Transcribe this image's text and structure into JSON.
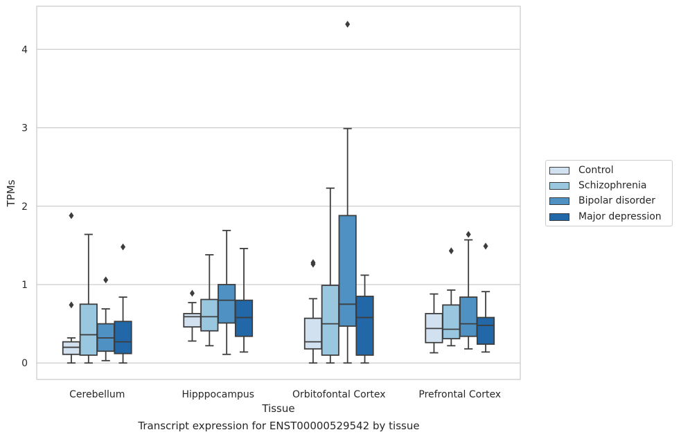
{
  "chart_data": {
    "type": "boxplot",
    "title": "",
    "caption": "Transcript expression for ENST00000529542 by tissue",
    "xlabel": "Tissue",
    "ylabel": "TPMs",
    "ylim": [
      -0.21,
      4.55
    ],
    "yticks": [
      0,
      1,
      2,
      3,
      4
    ],
    "grid": true,
    "legend_position": "right",
    "categories": [
      "Cerebellum",
      "Hipppocampus",
      "Orbitofontal Cortex",
      "Prefrontal Cortex"
    ],
    "series": [
      {
        "name": "Control",
        "color": "#d2e1f0",
        "boxes": [
          {
            "whislo": 0.0,
            "q1": 0.11,
            "med": 0.2,
            "q3": 0.27,
            "whishi": 0.32,
            "fliers": [
              0.74,
              1.88
            ]
          },
          {
            "whislo": 0.28,
            "q1": 0.46,
            "med": 0.59,
            "q3": 0.63,
            "whishi": 0.77,
            "fliers": [
              0.89
            ]
          },
          {
            "whislo": 0.0,
            "q1": 0.18,
            "med": 0.27,
            "q3": 0.57,
            "whishi": 0.82,
            "fliers": [
              1.26,
              1.28
            ]
          },
          {
            "whislo": 0.13,
            "q1": 0.26,
            "med": 0.44,
            "q3": 0.63,
            "whishi": 0.88,
            "fliers": []
          }
        ]
      },
      {
        "name": "Schizophrenia",
        "color": "#9ac7e0",
        "boxes": [
          {
            "whislo": 0.0,
            "q1": 0.1,
            "med": 0.36,
            "q3": 0.75,
            "whishi": 1.64,
            "fliers": []
          },
          {
            "whislo": 0.22,
            "q1": 0.41,
            "med": 0.59,
            "q3": 0.81,
            "whishi": 1.38,
            "fliers": []
          },
          {
            "whislo": 0.0,
            "q1": 0.1,
            "med": 0.5,
            "q3": 0.99,
            "whishi": 2.23,
            "fliers": []
          },
          {
            "whislo": 0.22,
            "q1": 0.31,
            "med": 0.43,
            "q3": 0.74,
            "whishi": 0.93,
            "fliers": [
              1.43
            ]
          }
        ]
      },
      {
        "name": "Bipolar disorder",
        "color": "#4f91c2",
        "boxes": [
          {
            "whislo": 0.03,
            "q1": 0.15,
            "med": 0.32,
            "q3": 0.5,
            "whishi": 0.69,
            "fliers": [
              1.06
            ]
          },
          {
            "whislo": 0.11,
            "q1": 0.51,
            "med": 0.8,
            "q3": 1.0,
            "whishi": 1.69,
            "fliers": []
          },
          {
            "whislo": 0.0,
            "q1": 0.47,
            "med": 0.75,
            "q3": 1.88,
            "whishi": 2.99,
            "fliers": [
              4.32
            ]
          },
          {
            "whislo": 0.18,
            "q1": 0.34,
            "med": 0.5,
            "q3": 0.84,
            "whishi": 1.57,
            "fliers": [
              1.64
            ]
          }
        ]
      },
      {
        "name": "Major depression",
        "color": "#2268a8",
        "boxes": [
          {
            "whislo": 0.0,
            "q1": 0.12,
            "med": 0.27,
            "q3": 0.53,
            "whishi": 0.84,
            "fliers": [
              1.48
            ]
          },
          {
            "whislo": 0.14,
            "q1": 0.34,
            "med": 0.58,
            "q3": 0.8,
            "whishi": 1.46,
            "fliers": []
          },
          {
            "whislo": 0.0,
            "q1": 0.1,
            "med": 0.58,
            "q3": 0.85,
            "whishi": 1.12,
            "fliers": []
          },
          {
            "whislo": 0.14,
            "q1": 0.24,
            "med": 0.48,
            "q3": 0.58,
            "whishi": 0.91,
            "fliers": [
              1.49
            ]
          }
        ]
      }
    ]
  }
}
